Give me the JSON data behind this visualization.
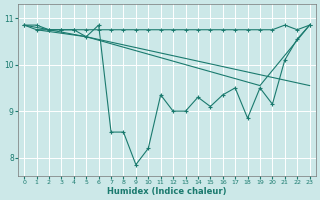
{
  "xlabel": "Humidex (Indice chaleur)",
  "bg_color": "#cce8e8",
  "grid_color": "#ffffff",
  "line_color": "#1a7a6e",
  "xlim": [
    -0.5,
    23.5
  ],
  "ylim": [
    7.6,
    11.3
  ],
  "xticks": [
    0,
    1,
    2,
    3,
    4,
    5,
    6,
    7,
    8,
    9,
    10,
    11,
    12,
    13,
    14,
    15,
    16,
    17,
    18,
    19,
    20,
    21,
    22,
    23
  ],
  "yticks": [
    8,
    9,
    10,
    11
  ],
  "series": [
    {
      "x": [
        0,
        1,
        2,
        3,
        4,
        5,
        6,
        7,
        8,
        9,
        10,
        11,
        12,
        13,
        14,
        15,
        16,
        17,
        18,
        19,
        20,
        21,
        22,
        23
      ],
      "y": [
        10.85,
        10.85,
        10.75,
        10.75,
        10.75,
        10.75,
        10.75,
        10.75,
        10.75,
        10.75,
        10.75,
        10.75,
        10.75,
        10.75,
        10.75,
        10.75,
        10.75,
        10.75,
        10.75,
        10.75,
        10.75,
        10.85,
        10.75,
        10.85
      ]
    },
    {
      "x": [
        0,
        5,
        23
      ],
      "y": [
        10.85,
        10.6,
        9.55
      ]
    },
    {
      "x": [
        1,
        5,
        19,
        23
      ],
      "y": [
        10.75,
        10.6,
        9.55,
        10.85
      ]
    },
    {
      "x": [
        0,
        1,
        2,
        3,
        4,
        5,
        6,
        7,
        8,
        9,
        10,
        11,
        12,
        13,
        14,
        15,
        16,
        17,
        18,
        19,
        20,
        21,
        22,
        23
      ],
      "y": [
        10.85,
        10.75,
        10.75,
        10.75,
        10.75,
        10.6,
        10.85,
        8.55,
        8.55,
        7.85,
        8.2,
        9.35,
        9.0,
        9.0,
        9.3,
        9.1,
        9.35,
        9.5,
        8.85,
        9.5,
        9.15,
        10.1,
        10.55,
        10.85
      ]
    }
  ]
}
